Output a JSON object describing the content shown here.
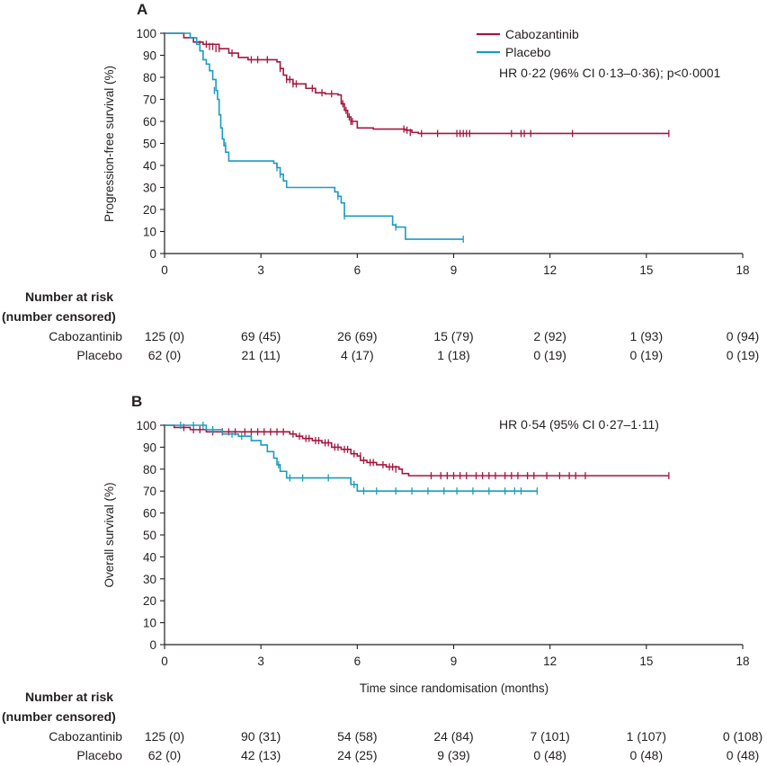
{
  "colors": {
    "cabozantinib": "#a3173f",
    "placebo": "#1a9cc0",
    "axis": "#231f20"
  },
  "chart_data": [
    {
      "type": "line",
      "panel": "A",
      "ylabel": "Progression-free survival (%)",
      "xlabel": "",
      "xlim": [
        0,
        18
      ],
      "ylim": [
        0,
        100
      ],
      "xticks": [
        0,
        3,
        6,
        9,
        12,
        15,
        18
      ],
      "yticks": [
        0,
        10,
        20,
        30,
        40,
        50,
        60,
        70,
        80,
        90,
        100
      ],
      "legend": [
        "Cabozantinib",
        "Placebo"
      ],
      "legend_position": "top-right",
      "annotation": "HR 0·22 (96% CI 0·13–0·36); p<0·0001",
      "series": [
        {
          "name": "Cabozantinib",
          "color_key": "cabozantinib",
          "steps": [
            [
              0,
              100
            ],
            [
              0.6,
              98
            ],
            [
              0.9,
              96
            ],
            [
              1.2,
              95
            ],
            [
              1.7,
              93
            ],
            [
              2.0,
              91
            ],
            [
              2.3,
              89
            ],
            [
              2.6,
              88
            ],
            [
              3.5,
              87
            ],
            [
              3.6,
              84
            ],
            [
              3.7,
              81
            ],
            [
              3.8,
              79
            ],
            [
              4.0,
              77
            ],
            [
              4.4,
              75
            ],
            [
              4.7,
              73
            ],
            [
              5.0,
              72.5
            ],
            [
              5.4,
              72
            ],
            [
              5.5,
              68
            ],
            [
              5.6,
              65
            ],
            [
              5.7,
              62
            ],
            [
              5.8,
              60
            ],
            [
              6.0,
              57
            ],
            [
              6.5,
              56.5
            ],
            [
              7.5,
              56
            ],
            [
              7.7,
              55
            ],
            [
              7.9,
              54.5
            ]
          ],
          "end": 15.7,
          "censor": [
            [
              1.1,
              95
            ],
            [
              1.3,
              95
            ],
            [
              1.4,
              94
            ],
            [
              1.5,
              94
            ],
            [
              1.6,
              93
            ],
            [
              1.7,
              93
            ],
            [
              2.1,
              91
            ],
            [
              2.7,
              88
            ],
            [
              2.9,
              88
            ],
            [
              3.2,
              88
            ],
            [
              3.6,
              84
            ],
            [
              3.8,
              79
            ],
            [
              3.9,
              79
            ],
            [
              4.0,
              77
            ],
            [
              4.1,
              77
            ],
            [
              4.6,
              75
            ],
            [
              4.9,
              73
            ],
            [
              5.2,
              72.5
            ],
            [
              5.55,
              68
            ],
            [
              5.65,
              65
            ],
            [
              5.75,
              62
            ],
            [
              5.8,
              60
            ],
            [
              5.85,
              60
            ],
            [
              7.45,
              56.5
            ],
            [
              7.55,
              56
            ],
            [
              7.65,
              55
            ],
            [
              8.0,
              54.5
            ],
            [
              8.5,
              54.5
            ],
            [
              9.1,
              54.5
            ],
            [
              9.2,
              54.5
            ],
            [
              9.3,
              54.5
            ],
            [
              9.4,
              54.5
            ],
            [
              9.5,
              54.5
            ],
            [
              10.8,
              54.5
            ],
            [
              11.1,
              54.5
            ],
            [
              11.2,
              54.5
            ],
            [
              11.4,
              54.5
            ],
            [
              12.7,
              54.5
            ],
            [
              15.7,
              54.5
            ]
          ]
        },
        {
          "name": "Placebo",
          "color_key": "placebo",
          "steps": [
            [
              0,
              100
            ],
            [
              0.8,
              98
            ],
            [
              1.0,
              95
            ],
            [
              1.1,
              92
            ],
            [
              1.2,
              88
            ],
            [
              1.3,
              86
            ],
            [
              1.4,
              83
            ],
            [
              1.5,
              79
            ],
            [
              1.6,
              74
            ],
            [
              1.65,
              70
            ],
            [
              1.7,
              63
            ],
            [
              1.75,
              57
            ],
            [
              1.8,
              52
            ],
            [
              1.85,
              49
            ],
            [
              1.9,
              46
            ],
            [
              2.0,
              42
            ],
            [
              3.4,
              41
            ],
            [
              3.5,
              39
            ],
            [
              3.6,
              36
            ],
            [
              3.7,
              33
            ],
            [
              3.8,
              30
            ],
            [
              5.3,
              28
            ],
            [
              5.4,
              26
            ],
            [
              5.5,
              23
            ],
            [
              5.6,
              17
            ],
            [
              7.1,
              13
            ],
            [
              7.2,
              12
            ],
            [
              7.5,
              6.5
            ]
          ],
          "end": 9.3,
          "censor": [
            [
              1.55,
              74
            ],
            [
              1.9,
              49
            ],
            [
              3.5,
              39
            ],
            [
              3.6,
              36
            ],
            [
              5.4,
              26
            ],
            [
              5.6,
              17
            ],
            [
              7.2,
              12
            ],
            [
              9.3,
              6.5
            ]
          ]
        }
      ],
      "risk_table": {
        "title_line1": "Number at risk",
        "title_line2": "(number censored)",
        "rows": [
          {
            "label": "Cabozantinib",
            "values": [
              "125 (0)",
              "69 (45)",
              "26 (69)",
              "15 (79)",
              "2 (92)",
              "1 (93)",
              "0 (94)"
            ]
          },
          {
            "label": "Placebo",
            "values": [
              "62 (0)",
              "21 (11)",
              "4 (17)",
              "1 (18)",
              "0 (19)",
              "0 (19)",
              "0 (19)"
            ]
          }
        ]
      }
    },
    {
      "type": "line",
      "panel": "B",
      "ylabel": "Overall survival (%)",
      "xlabel": "Time since randomisation (months)",
      "xlim": [
        0,
        18
      ],
      "ylim": [
        0,
        100
      ],
      "xticks": [
        0,
        3,
        6,
        9,
        12,
        15,
        18
      ],
      "yticks": [
        0,
        10,
        20,
        30,
        40,
        50,
        60,
        70,
        80,
        90,
        100
      ],
      "annotation": "HR 0·54 (95% CI 0·27–1·11)",
      "series": [
        {
          "name": "Cabozantinib",
          "color_key": "cabozantinib",
          "steps": [
            [
              0,
              100
            ],
            [
              0.3,
              99
            ],
            [
              0.8,
              98
            ],
            [
              1.3,
              97
            ],
            [
              3.9,
              96
            ],
            [
              4.1,
              95
            ],
            [
              4.3,
              94
            ],
            [
              4.6,
              93
            ],
            [
              4.9,
              92
            ],
            [
              5.2,
              90
            ],
            [
              5.5,
              89
            ],
            [
              5.8,
              87
            ],
            [
              6.0,
              86
            ],
            [
              6.1,
              84
            ],
            [
              6.3,
              83
            ],
            [
              6.6,
              82
            ],
            [
              6.9,
              81
            ],
            [
              7.3,
              80
            ],
            [
              7.4,
              78
            ],
            [
              7.6,
              77
            ]
          ],
          "end": 15.7,
          "censor": [
            [
              0.6,
              99
            ],
            [
              0.9,
              98
            ],
            [
              1.1,
              98
            ],
            [
              1.5,
              97
            ],
            [
              1.8,
              97
            ],
            [
              2.0,
              97
            ],
            [
              2.2,
              97
            ],
            [
              2.5,
              97
            ],
            [
              2.7,
              97
            ],
            [
              2.9,
              97
            ],
            [
              3.1,
              97
            ],
            [
              3.3,
              97
            ],
            [
              3.5,
              97
            ],
            [
              3.7,
              97
            ],
            [
              4.0,
              96
            ],
            [
              4.2,
              95
            ],
            [
              4.4,
              94
            ],
            [
              4.5,
              94
            ],
            [
              4.7,
              93
            ],
            [
              4.8,
              93
            ],
            [
              5.0,
              92
            ],
            [
              5.1,
              92
            ],
            [
              5.3,
              90
            ],
            [
              5.4,
              90
            ],
            [
              5.6,
              89
            ],
            [
              5.7,
              89
            ],
            [
              5.9,
              87
            ],
            [
              6.1,
              86
            ],
            [
              6.2,
              84
            ],
            [
              6.4,
              83
            ],
            [
              6.5,
              83
            ],
            [
              6.8,
              82
            ],
            [
              7.0,
              81
            ],
            [
              7.1,
              81
            ],
            [
              7.2,
              80
            ],
            [
              8.3,
              77
            ],
            [
              8.6,
              77
            ],
            [
              8.8,
              77
            ],
            [
              9.0,
              77
            ],
            [
              9.2,
              77
            ],
            [
              9.4,
              77
            ],
            [
              9.7,
              77
            ],
            [
              9.9,
              77
            ],
            [
              10.1,
              77
            ],
            [
              10.3,
              77
            ],
            [
              10.6,
              77
            ],
            [
              10.8,
              77
            ],
            [
              11.0,
              77
            ],
            [
              11.3,
              77
            ],
            [
              11.5,
              77
            ],
            [
              11.9,
              77
            ],
            [
              12.3,
              77
            ],
            [
              12.6,
              77
            ],
            [
              12.8,
              77
            ],
            [
              13.1,
              77
            ],
            [
              15.7,
              77
            ]
          ]
        },
        {
          "name": "Placebo",
          "color_key": "placebo",
          "steps": [
            [
              0,
              100
            ],
            [
              1.3,
              98
            ],
            [
              1.8,
              96
            ],
            [
              2.3,
              95
            ],
            [
              2.7,
              93
            ],
            [
              3.0,
              91
            ],
            [
              3.2,
              88
            ],
            [
              3.4,
              85
            ],
            [
              3.5,
              82
            ],
            [
              3.6,
              79
            ],
            [
              3.8,
              76
            ],
            [
              5.8,
              73
            ],
            [
              6.0,
              70
            ]
          ],
          "end": 11.6,
          "censor": [
            [
              0.5,
              100
            ],
            [
              0.9,
              100
            ],
            [
              1.2,
              100
            ],
            [
              1.5,
              98
            ],
            [
              2.1,
              96
            ],
            [
              2.4,
              95
            ],
            [
              3.55,
              82
            ],
            [
              3.9,
              76
            ],
            [
              4.3,
              76
            ],
            [
              5.1,
              76
            ],
            [
              5.9,
              73
            ],
            [
              6.2,
              70
            ],
            [
              6.6,
              70
            ],
            [
              7.2,
              70
            ],
            [
              7.7,
              70
            ],
            [
              8.2,
              70
            ],
            [
              8.7,
              70
            ],
            [
              9.1,
              70
            ],
            [
              9.6,
              70
            ],
            [
              10.1,
              70
            ],
            [
              10.6,
              70
            ],
            [
              10.9,
              70
            ],
            [
              11.1,
              70
            ],
            [
              11.6,
              70
            ]
          ]
        }
      ],
      "risk_table": {
        "title_line1": "Number at risk",
        "title_line2": "(number censored)",
        "rows": [
          {
            "label": "Cabozantinib",
            "values": [
              "125 (0)",
              "90 (31)",
              "54 (58)",
              "24 (84)",
              "7 (101)",
              "1 (107)",
              "0 (108)"
            ]
          },
          {
            "label": "Placebo",
            "values": [
              "62 (0)",
              "42 (13)",
              "24 (25)",
              "9 (39)",
              "0 (48)",
              "0 (48)",
              "0 (48)"
            ]
          }
        ]
      }
    }
  ]
}
